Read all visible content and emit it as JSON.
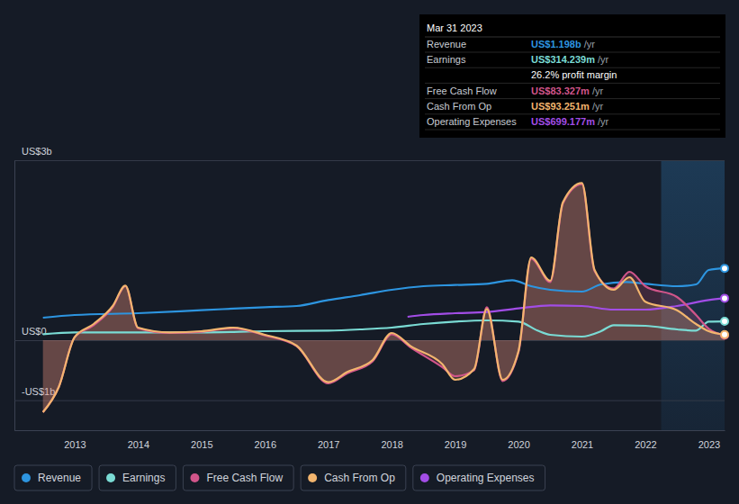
{
  "chart_data": {
    "type": "line",
    "xlim": [
      2012.05,
      2023.25
    ],
    "xticks": [
      2013,
      2014,
      2015,
      2016,
      2017,
      2018,
      2019,
      2020,
      2021,
      2022,
      2023
    ],
    "ylim": [
      -1.5,
      3
    ],
    "yticks": [
      {
        "value": -1,
        "label": "-US$1b"
      },
      {
        "value": 0,
        "label": "US$0"
      },
      {
        "value": 3,
        "label": "US$3b"
      }
    ],
    "grid": true,
    "legend": "bottom",
    "shaded_range": [
      2022.25,
      2023.25
    ],
    "series": [
      {
        "name": "Revenue",
        "color": "#2d95e0",
        "type": "line",
        "x": [
          2012.5,
          2013,
          2014,
          2015,
          2016,
          2016.5,
          2017,
          2017.5,
          2018,
          2018.5,
          2019,
          2019.5,
          2019.9,
          2020.2,
          2020.5,
          2021,
          2021.3,
          2021.7,
          2022,
          2022.5,
          2022.8,
          2023,
          2023.25
        ],
        "values": [
          0.375,
          0.42,
          0.45,
          0.5,
          0.55,
          0.57,
          0.67,
          0.75,
          0.84,
          0.9,
          0.92,
          0.94,
          1.0,
          0.9,
          0.84,
          0.81,
          0.93,
          0.97,
          0.94,
          0.9,
          0.93,
          1.17,
          1.198
        ]
      },
      {
        "name": "Earnings",
        "color": "#7adbd4",
        "type": "line",
        "x": [
          2012.5,
          2013,
          2014,
          2015,
          2016,
          2017,
          2017.5,
          2018,
          2018.5,
          2019,
          2019.5,
          2020,
          2020.3,
          2020.5,
          2021,
          2021.3,
          2021.5,
          2022,
          2022.5,
          2022.8,
          2023,
          2023.25
        ],
        "values": [
          0.1,
          0.13,
          0.13,
          0.13,
          0.15,
          0.16,
          0.18,
          0.21,
          0.27,
          0.31,
          0.33,
          0.31,
          0.16,
          0.09,
          0.06,
          0.15,
          0.25,
          0.24,
          0.18,
          0.16,
          0.31,
          0.314
        ]
      },
      {
        "name": "Free Cash Flow",
        "color": "#d1558a",
        "type": "area",
        "x": [
          2012.5,
          2012.75,
          2013,
          2013.3,
          2013.6,
          2013.8,
          2014,
          2014.5,
          2015,
          2015.5,
          2016,
          2016.5,
          2017,
          2017.3,
          2017.7,
          2018,
          2018.3,
          2018.8,
          2019,
          2019.3,
          2019.5,
          2019.75,
          2020,
          2020.2,
          2020.5,
          2020.7,
          2021,
          2021.2,
          2021.5,
          2021.75,
          2022,
          2022.5,
          2022.8,
          2023,
          2023.25
        ],
        "values": [
          -1.2,
          -0.78,
          0.05,
          0.25,
          0.55,
          0.9,
          0.2,
          0.12,
          0.14,
          0.2,
          0.08,
          -0.1,
          -0.72,
          -0.55,
          -0.35,
          0.1,
          -0.12,
          -0.45,
          -0.6,
          -0.5,
          0.55,
          -0.68,
          -0.2,
          1.36,
          0.97,
          2.28,
          2.6,
          1.15,
          0.86,
          1.14,
          0.9,
          0.72,
          0.42,
          0.19,
          0.083
        ]
      },
      {
        "name": "Cash From Op",
        "color": "#f2b56e",
        "type": "area",
        "x": [
          2012.5,
          2012.75,
          2013,
          2013.3,
          2013.6,
          2013.8,
          2014,
          2014.5,
          2015,
          2015.5,
          2016,
          2016.5,
          2017,
          2017.3,
          2017.7,
          2018,
          2018.3,
          2018.8,
          2019,
          2019.3,
          2019.5,
          2019.75,
          2020,
          2020.2,
          2020.5,
          2020.7,
          2021,
          2021.2,
          2021.5,
          2021.75,
          2022,
          2022.5,
          2022.8,
          2023,
          2023.25
        ],
        "values": [
          -1.2,
          -0.78,
          0.05,
          0.27,
          0.57,
          0.91,
          0.21,
          0.13,
          0.15,
          0.21,
          0.09,
          -0.09,
          -0.7,
          -0.53,
          -0.33,
          0.12,
          -0.1,
          -0.4,
          -0.66,
          -0.48,
          0.52,
          -0.66,
          -0.18,
          1.38,
          0.99,
          2.3,
          2.62,
          1.17,
          0.84,
          1.05,
          0.64,
          0.5,
          0.27,
          0.15,
          0.093
        ]
      },
      {
        "name": "Operating Expenses",
        "color": "#a24de6",
        "type": "line",
        "x": [
          2018.25,
          2018.5,
          2019,
          2019.5,
          2020,
          2020.5,
          2021,
          2021.5,
          2022,
          2022.5,
          2023,
          2023.25
        ],
        "values": [
          0.39,
          0.42,
          0.45,
          0.47,
          0.53,
          0.58,
          0.57,
          0.51,
          0.51,
          0.57,
          0.67,
          0.699
        ]
      }
    ],
    "tooltip": {
      "title": "Mar 31 2023",
      "rows": [
        {
          "label": "Revenue",
          "value": "US$1.198b",
          "unit": "/yr"
        },
        {
          "label": "Earnings",
          "value": "US$314.239m",
          "unit": "/yr"
        },
        {
          "value": "26.2% profit margin"
        },
        {
          "label": "Free Cash Flow",
          "value": "US$83.327m",
          "unit": "/yr"
        },
        {
          "label": "Cash From Op",
          "value": "US$93.251m",
          "unit": "/yr"
        },
        {
          "label": "Operating Expenses",
          "value": "US$699.177m",
          "unit": "/yr"
        }
      ]
    }
  }
}
